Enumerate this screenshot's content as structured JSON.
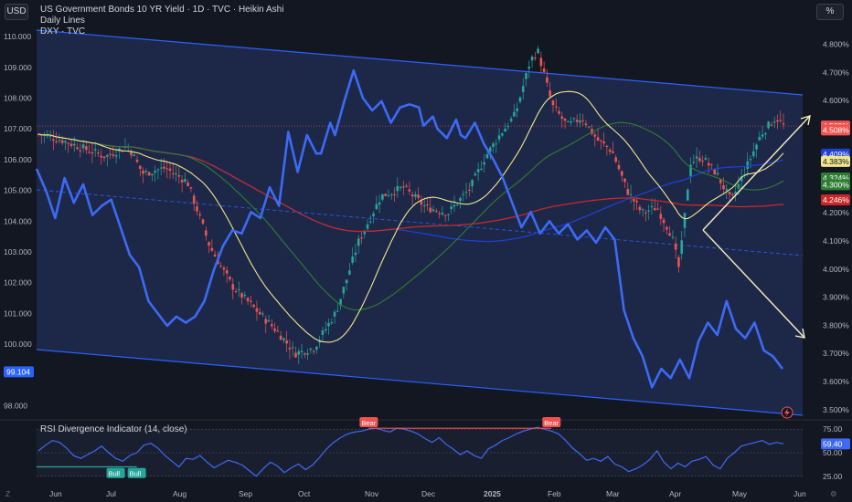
{
  "currency_button": "USD",
  "scale_button": "%",
  "legend": {
    "title": "US Government Bonds 10 YR Yield · 1D · TVC · Heikin Ashi",
    "line2": "Daily Lines",
    "line3": "DXY · TVC"
  },
  "oscillator_title": "RSI Divergence Indicator (14, close)",
  "icons": {
    "corner_left": "Z",
    "corner_right": "⚙",
    "alert": "lightning-icon"
  },
  "colors": {
    "background": "#131722",
    "channel_fill": "#1f2a4d",
    "channel_line": "#2962ff",
    "dxy_line": "#3d6af5",
    "up_candle": "#26a69a",
    "down_candle": "#ef5350",
    "ma_yellow": "#f0e68c",
    "ma_green": "#2e7d32",
    "ma_blue": "#1e3fcf",
    "ma_red": "#c62828",
    "arrow": "#f5f0c0"
  },
  "chart_data": {
    "type": "line",
    "x_ticks": [
      "Jun",
      "Jul",
      "Aug",
      "Sep",
      "Oct",
      "Nov",
      "Dec",
      "2025",
      "Feb",
      "Mar",
      "Apr",
      "May",
      "Jun"
    ],
    "left_axis": {
      "ticks": [
        "110.000",
        "109.000",
        "108.000",
        "107.000",
        "106.000",
        "105.000",
        "104.000",
        "103.000",
        "102.000",
        "101.000",
        "100.000",
        "98.000"
      ],
      "ylim": [
        97.6,
        110.3
      ],
      "current_label": "99.104"
    },
    "right_axis": {
      "ticks": [
        "4.800%",
        "4.700%",
        "4.600%",
        "4.500%",
        "4.200%",
        "4.100%",
        "4.000%",
        "3.900%",
        "3.800%",
        "3.700%",
        "3.600%",
        "3.500%"
      ],
      "ylim": [
        3.47,
        4.86
      ],
      "badges": [
        {
          "text": "4.509%",
          "value": 4.509,
          "color": "#ef5350"
        },
        {
          "text": "4.508%",
          "value": 4.495,
          "color": "#ef5350"
        },
        {
          "text": "4.409%",
          "value": 4.409,
          "color": "#1e3fcf"
        },
        {
          "text": "4.383%",
          "value": 4.383,
          "color": "#f0e68c"
        },
        {
          "text": "4.324%",
          "value": 4.324,
          "color": "#2e7d32"
        },
        {
          "text": "4.300%",
          "value": 4.3,
          "color": "#2e7d32"
        },
        {
          "text": "4.246%",
          "value": 4.246,
          "color": "#c62828"
        }
      ]
    },
    "yield_series": {
      "name": "US Government Bonds 10 YR Yield",
      "unit": "%",
      "points": [
        [
          0.0,
          4.48
        ],
        [
          0.03,
          4.46
        ],
        [
          0.06,
          4.43
        ],
        [
          0.09,
          4.4
        ],
        [
          0.12,
          4.44
        ],
        [
          0.14,
          4.34
        ],
        [
          0.17,
          4.36
        ],
        [
          0.2,
          4.31
        ],
        [
          0.23,
          4.08
        ],
        [
          0.26,
          3.94
        ],
        [
          0.29,
          3.86
        ],
        [
          0.32,
          3.78
        ],
        [
          0.345,
          3.7
        ],
        [
          0.37,
          3.72
        ],
        [
          0.4,
          3.85
        ],
        [
          0.43,
          4.1
        ],
        [
          0.46,
          4.26
        ],
        [
          0.49,
          4.29
        ],
        [
          0.52,
          4.22
        ],
        [
          0.55,
          4.2
        ],
        [
          0.58,
          4.29
        ],
        [
          0.6,
          4.4
        ],
        [
          0.62,
          4.48
        ],
        [
          0.64,
          4.55
        ],
        [
          0.66,
          4.74
        ],
        [
          0.67,
          4.78
        ],
        [
          0.69,
          4.58
        ],
        [
          0.71,
          4.51
        ],
        [
          0.73,
          4.54
        ],
        [
          0.75,
          4.46
        ],
        [
          0.77,
          4.42
        ],
        [
          0.79,
          4.28
        ],
        [
          0.81,
          4.2
        ],
        [
          0.83,
          4.22
        ],
        [
          0.85,
          4.12
        ],
        [
          0.86,
          4.0
        ],
        [
          0.875,
          4.38
        ],
        [
          0.89,
          4.4
        ],
        [
          0.91,
          4.34
        ],
        [
          0.93,
          4.24
        ],
        [
          0.95,
          4.36
        ],
        [
          0.97,
          4.48
        ],
        [
          0.99,
          4.54
        ],
        [
          1.0,
          4.51
        ]
      ]
    },
    "dxy_series": {
      "name": "DXY",
      "points": [
        [
          0.0,
          105.7
        ],
        [
          0.02,
          105.0
        ],
        [
          0.04,
          104.1
        ],
        [
          0.06,
          105.4
        ],
        [
          0.08,
          104.6
        ],
        [
          0.1,
          105.2
        ],
        [
          0.12,
          104.2
        ],
        [
          0.14,
          104.5
        ],
        [
          0.16,
          104.7
        ],
        [
          0.18,
          103.8
        ],
        [
          0.2,
          102.9
        ],
        [
          0.22,
          102.5
        ],
        [
          0.24,
          101.4
        ],
        [
          0.26,
          101.0
        ],
        [
          0.28,
          100.6
        ],
        [
          0.3,
          100.9
        ],
        [
          0.32,
          100.7
        ],
        [
          0.34,
          100.9
        ],
        [
          0.36,
          101.4
        ],
        [
          0.38,
          102.4
        ],
        [
          0.4,
          103.2
        ],
        [
          0.42,
          103.7
        ],
        [
          0.44,
          103.6
        ],
        [
          0.46,
          104.3
        ],
        [
          0.48,
          104.1
        ],
        [
          0.5,
          105.1
        ],
        [
          0.52,
          104.5
        ],
        [
          0.54,
          106.9
        ],
        [
          0.56,
          105.6
        ],
        [
          0.58,
          106.8
        ],
        [
          0.6,
          106.2
        ],
        [
          0.61,
          106.2
        ],
        [
          0.63,
          107.2
        ],
        [
          0.64,
          106.8
        ],
        [
          0.66,
          107.9
        ],
        [
          0.68,
          108.9
        ],
        [
          0.7,
          108.0
        ],
        [
          0.72,
          107.6
        ],
        [
          0.74,
          107.9
        ],
        [
          0.76,
          107.2
        ],
        [
          0.78,
          107.7
        ],
        [
          0.8,
          107.8
        ],
        [
          0.82,
          107.7
        ],
        [
          0.83,
          107.1
        ],
        [
          0.85,
          107.4
        ],
        [
          0.86,
          107.0
        ],
        [
          0.88,
          106.7
        ],
        [
          0.9,
          107.3
        ],
        [
          0.91,
          106.8
        ],
        [
          0.92,
          106.7
        ],
        [
          0.94,
          107.2
        ],
        [
          0.96,
          106.5
        ],
        [
          0.98,
          106.0
        ],
        [
          1.0,
          105.4
        ],
        [
          1.02,
          104.6
        ],
        [
          1.04,
          103.8
        ],
        [
          1.06,
          104.3
        ],
        [
          1.08,
          103.6
        ],
        [
          1.1,
          104.0
        ],
        [
          1.12,
          103.6
        ],
        [
          1.14,
          103.9
        ],
        [
          1.16,
          103.4
        ],
        [
          1.18,
          103.7
        ],
        [
          1.2,
          103.3
        ],
        [
          1.22,
          103.8
        ],
        [
          1.24,
          103.4
        ],
        [
          1.26,
          101.1
        ],
        [
          1.28,
          100.2
        ],
        [
          1.3,
          99.6
        ],
        [
          1.32,
          98.6
        ],
        [
          1.34,
          99.2
        ],
        [
          1.36,
          98.9
        ],
        [
          1.38,
          99.5
        ],
        [
          1.4,
          98.9
        ],
        [
          1.42,
          100.1
        ],
        [
          1.44,
          100.7
        ],
        [
          1.46,
          100.3
        ],
        [
          1.48,
          101.4
        ],
        [
          1.5,
          100.5
        ],
        [
          1.52,
          100.2
        ],
        [
          1.54,
          100.7
        ],
        [
          1.56,
          99.8
        ],
        [
          1.58,
          99.6
        ],
        [
          1.6,
          99.2
        ]
      ]
    },
    "rsi": {
      "name": "RSI",
      "ticks": [
        "75.00",
        "50.00",
        "25.00"
      ],
      "current_label": "59.40",
      "ylim": [
        20,
        82
      ],
      "values": [
        52,
        58,
        63,
        61,
        55,
        47,
        44,
        48,
        52,
        57,
        50,
        44,
        41,
        47,
        50,
        58,
        60,
        55,
        47,
        41,
        35,
        44,
        43,
        47,
        40,
        34,
        38,
        42,
        40,
        37,
        31,
        25,
        33,
        40,
        36,
        29,
        34,
        38,
        32,
        37,
        45,
        54,
        61,
        66,
        70,
        72,
        73,
        75,
        76,
        74,
        72,
        76,
        75,
        73,
        70,
        65,
        61,
        66,
        59,
        54,
        48,
        52,
        47,
        44,
        54,
        58,
        63,
        66,
        70,
        73,
        75,
        77,
        75,
        73,
        70,
        63,
        55,
        49,
        42,
        44,
        41,
        46,
        38,
        35,
        30,
        33,
        37,
        43,
        52,
        40,
        33,
        39,
        35,
        41,
        43,
        46,
        37,
        33,
        44,
        50,
        57,
        59,
        61,
        63,
        59,
        61,
        59.4
      ],
      "labels": [
        {
          "text": "Bull",
          "type": "bull",
          "index": 11
        },
        {
          "text": "Bull",
          "type": "bull",
          "index": 14
        },
        {
          "text": "Bear",
          "type": "bear",
          "index": 47
        },
        {
          "text": "Bear",
          "type": "bear",
          "index": 73
        }
      ]
    }
  }
}
